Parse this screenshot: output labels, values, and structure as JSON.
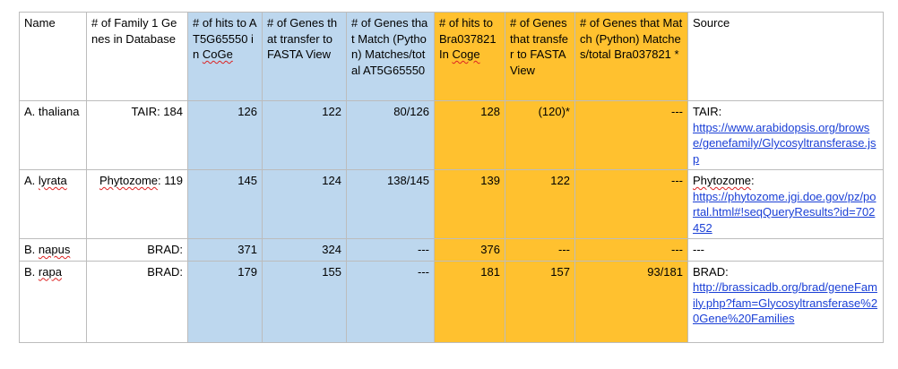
{
  "headers": {
    "name": "Name",
    "family_db": "# of Family 1 Genes in Database",
    "hits_at_pre": "# of hits to AT5G65550 in ",
    "hits_at_coge": "CoGe",
    "genes_transfer_at": "# of Genes that transfer to FASTA View",
    "genes_match_at": "# of Genes that Match (Python) Matches/total AT5G65550",
    "hits_bra_pre": "# of hits to Bra037821 In ",
    "hits_bra_coge": "Coge",
    "genes_transfer_bra": "# of Genes that transfer to FASTA View",
    "genes_match_bra": "# of Genes that Match (Python) Matches/total Bra037821 *",
    "source": "Source"
  },
  "rows": [
    {
      "name_genus": "A. ",
      "name_species": "thaliana",
      "db_prefix": "TAIR: 184",
      "hits_at": "126",
      "transfer_at": "122",
      "match_at": "80/126",
      "hits_bra": "128",
      "transfer_bra": "(120)*",
      "match_bra": "---",
      "source_label": "TAIR:",
      "source_url": "https://www.arabidopsis.org/browse/genefamily/Glycosyltransferase.jsp"
    },
    {
      "name_genus": "A. ",
      "name_species": "lyrata",
      "db_prefix": "Phytozome",
      "db_count": ": 119",
      "hits_at": "145",
      "transfer_at": "124",
      "match_at": "138/145",
      "hits_bra": "139",
      "transfer_bra": "122",
      "match_bra": "---",
      "source_label": "Phytozome",
      "source_label_suffix": ":",
      "source_url": "https://phytozome.jgi.doe.gov/pz/portal.html#!seqQueryResults?id=702452"
    },
    {
      "name_genus": "B. ",
      "name_species": "napus",
      "db_prefix": "BRAD:",
      "hits_at": "371",
      "transfer_at": "324",
      "match_at": "---",
      "hits_bra": "376",
      "transfer_bra": "---",
      "match_bra": "---",
      "source_label": "---"
    },
    {
      "name_genus": "B. ",
      "name_species": "rapa",
      "db_prefix": "BRAD:",
      "hits_at": "179",
      "transfer_at": "155",
      "match_at": "---",
      "hits_bra": "181",
      "transfer_bra": "157",
      "match_bra": "93/181",
      "source_label": "BRAD:",
      "source_url": "http://brassicadb.org/brad/geneFamily.php?fam=Glycosyltransferase%20Gene%20Families"
    }
  ],
  "colors": {
    "blue_columns": "#bdd7ee",
    "orange_columns": "#ffc12f",
    "link": "#1a3fd6"
  }
}
